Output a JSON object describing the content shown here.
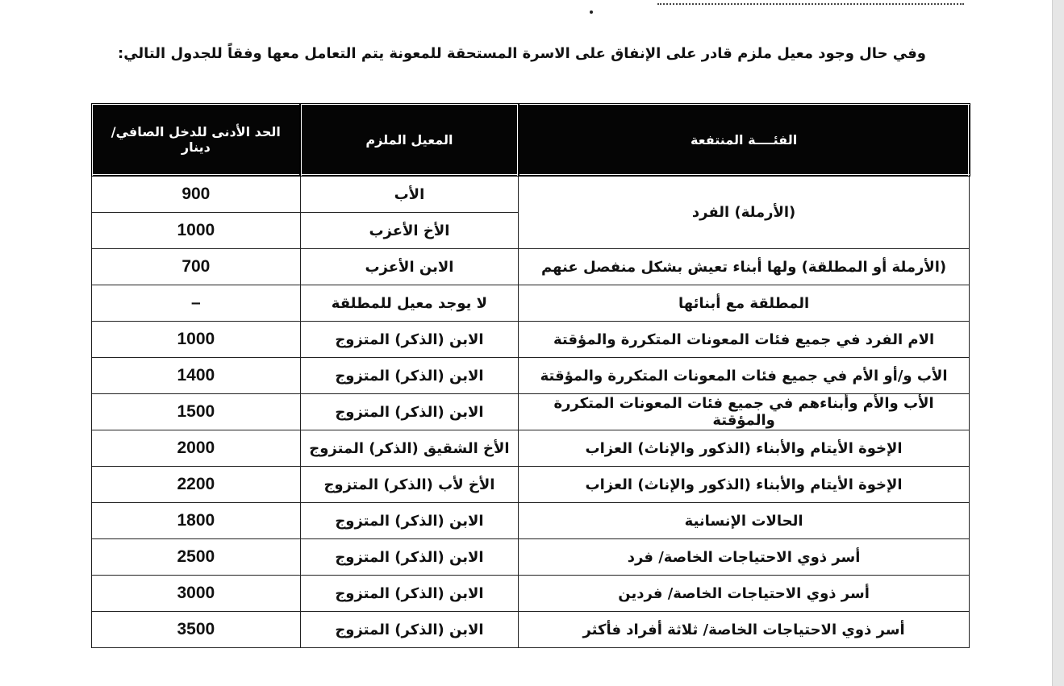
{
  "intro": "وفي حال وجود معيل ملزم قادر على الإنفاق على الاسرة المستحقة للمعونة يتم التعامل معها وفقاً للجدول التالي:",
  "table": {
    "headers": [
      "الفئــــة المنتفعة",
      "المعيل الملزم",
      "الحد الأدنى للدخل الصافي/دينار"
    ],
    "rows": [
      {
        "category": "(الأرملة) الفرد",
        "provider": "الأب",
        "income": "900"
      },
      {
        "category": "",
        "provider": "الأخ الأعزب",
        "income": "1000"
      },
      {
        "category": "(الأرملة أو المطلقة) ولها أبناء تعيش بشكل منفصل عنهم",
        "provider": "الابن الأعزب",
        "income": "700"
      },
      {
        "category": "المطلقة مع أبنائها",
        "provider": "لا يوجد معيل للمطلقة",
        "income": "–"
      },
      {
        "category": "الام الفرد في جميع فئات المعونات المتكررة والمؤقتة",
        "provider": "الابن (الذكر) المتزوج",
        "income": "1000"
      },
      {
        "category": "الأب و/أو الأم في جميع فئات المعونات المتكررة والمؤقتة",
        "provider": "الابن (الذكر) المتزوج",
        "income": "1400"
      },
      {
        "category": "الأب والأم وأبناءهم في جميع فئات المعونات المتكررة والمؤقتة",
        "provider": "الابن (الذكر) المتزوج",
        "income": "1500"
      },
      {
        "category": "الإخوة الأيتام والأبناء (الذكور والإناث) العزاب",
        "provider": "الأخ الشقيق (الذكر) المتزوج",
        "income": "2000"
      },
      {
        "category": "الإخوة الأيتام والأبناء (الذكور والإناث) العزاب",
        "provider": "الأخ لأب (الذكر) المتزوج",
        "income": "2200"
      },
      {
        "category": "الحالات الإنسانية",
        "provider": "الابن (الذكر) المتزوج",
        "income": "1800"
      },
      {
        "category": "أسر ذوي الاحتياجات الخاصة/ فرد",
        "provider": "الابن (الذكر) المتزوج",
        "income": "2500"
      },
      {
        "category": "أسر ذوي الاحتياجات الخاصة/ فردين",
        "provider": "الابن (الذكر) المتزوج",
        "income": "3000"
      },
      {
        "category": "أسر ذوي الاحتياجات الخاصة/ ثلاثة أفراد فأكثر",
        "provider": "الابن (الذكر) المتزوج",
        "income": "3500"
      }
    ]
  }
}
